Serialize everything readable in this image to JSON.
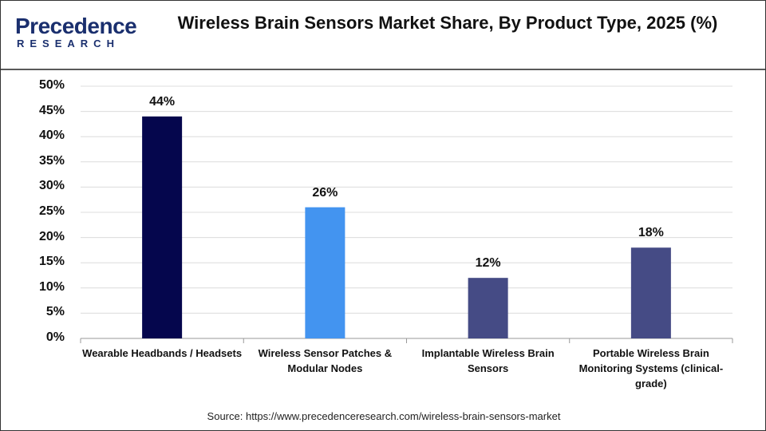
{
  "logo": {
    "name": "Precedence",
    "tagline": "RESEARCH"
  },
  "chart_data": {
    "type": "bar",
    "title": "Wireless Brain Sensors Market Share, By Product Type, 2025 (%)",
    "categories": [
      "Wearable Headbands / Headsets",
      "Wireless Sensor Patches & Modular Nodes",
      "Implantable Wireless Brain Sensors",
      "Portable Wireless Brain Monitoring Systems (clinical-grade)"
    ],
    "values": [
      44,
      26,
      12,
      18
    ],
    "value_labels": [
      "44%",
      "26%",
      "12%",
      "18%"
    ],
    "colors": [
      "#05064d",
      "#4394f0",
      "#454b85",
      "#454b85"
    ],
    "ylim": [
      0,
      50
    ],
    "yticks": [
      {
        "value": 0,
        "label": "0%"
      },
      {
        "value": 5,
        "label": "5%"
      },
      {
        "value": 10,
        "label": "10%"
      },
      {
        "value": 15,
        "label": "15%"
      },
      {
        "value": 20,
        "label": "20%"
      },
      {
        "value": 25,
        "label": "25%"
      },
      {
        "value": 30,
        "label": "30%"
      },
      {
        "value": 35,
        "label": "35%"
      },
      {
        "value": 40,
        "label": "40%"
      },
      {
        "value": 45,
        "label": "45%"
      },
      {
        "value": 50,
        "label": "50%"
      }
    ],
    "grid": true,
    "source": "Source: https://www.precedenceresearch.com/wireless-brain-sensors-market"
  }
}
